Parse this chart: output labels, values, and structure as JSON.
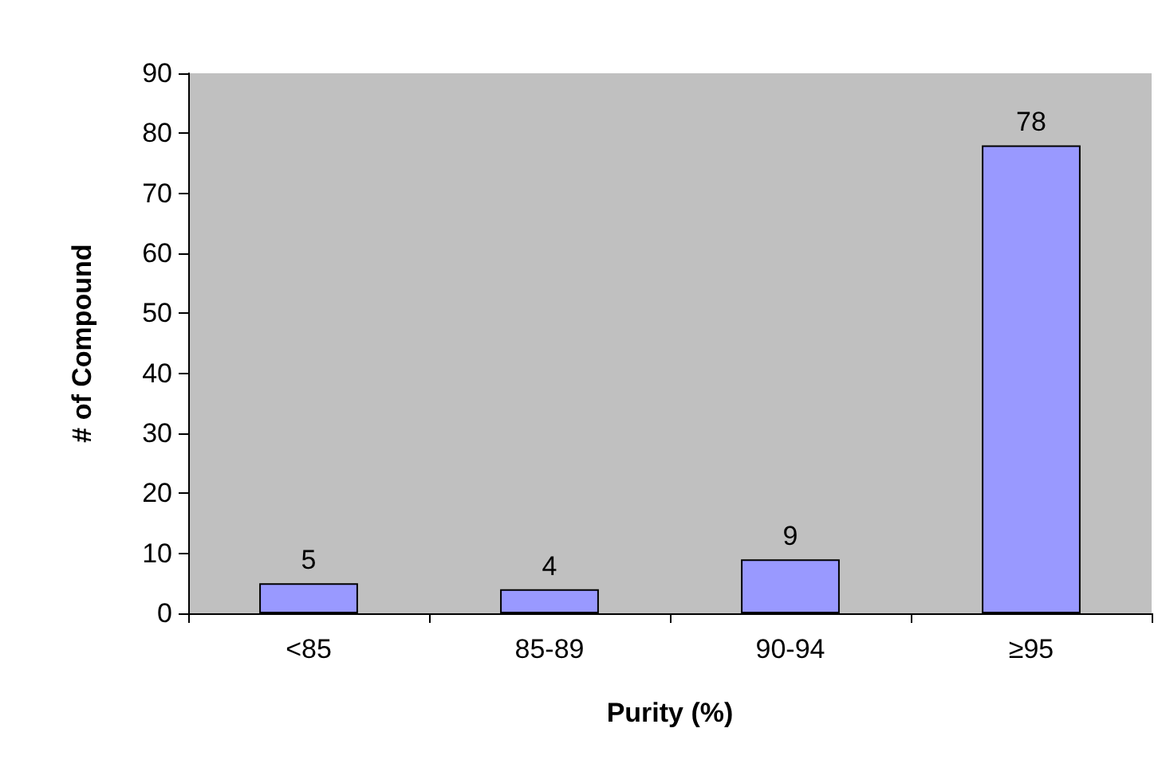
{
  "chart_data": {
    "type": "bar",
    "xlabel": "Purity (%)",
    "ylabel": "# of Compound",
    "categories": [
      "<85",
      "85-89",
      "90-94",
      "≥95"
    ],
    "values": [
      5,
      4,
      9,
      78
    ],
    "color": "#9999ff",
    "ylim": [
      0,
      90
    ],
    "yticks": [
      0,
      10,
      20,
      30,
      40,
      50,
      60,
      70,
      80,
      90
    ],
    "grid": false,
    "data_labels": true
  }
}
